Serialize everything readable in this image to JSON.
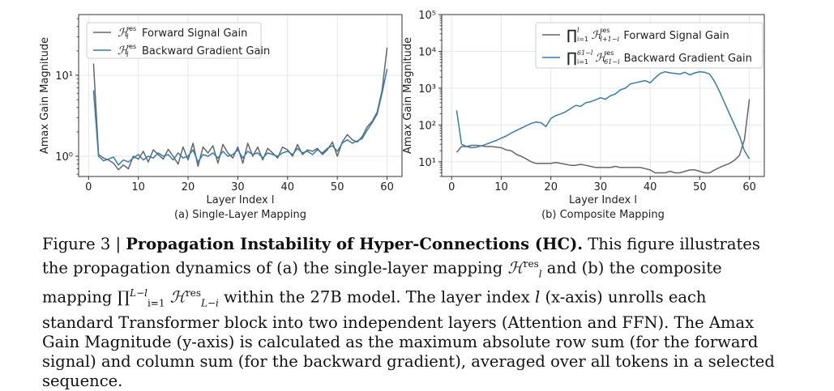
{
  "figure": {
    "caption_label": "Figure 3 | ",
    "caption_title": "Propagation Instability of Hyper-Connections (HC).",
    "caption_p1": " This figure illustrates the propagation dynamics of (a) the single-layer mapping ",
    "caption_m1": "ℋ",
    "caption_m1_sup": "res",
    "caption_m1_sub": "l",
    "caption_p2": " and (b) the composite mapping ",
    "caption_m2": "∏",
    "caption_m2_sup": "L−l",
    "caption_m2_sub": "i=1",
    "caption_m3": " ℋ",
    "caption_m3_sup": "res",
    "caption_m3_sub": "L−i",
    "caption_p3": " within the 27B model. The layer index ",
    "caption_l": "l",
    "caption_p4": " (x-axis) unrolls each standard Transformer block into two independent layers (Attention and FFN). The Amax Gain Magnitude (y-axis) is calculated as the maximum absolute row sum (for the forward signal) and column sum (for the backward gradient), averaged over all tokens in a selected sequence."
  },
  "colors": {
    "forward": "#666666",
    "backward": "#2f7fb5",
    "grid": "#e6e6e6"
  },
  "chart_data": [
    {
      "type": "line",
      "subtitle": "(a) Single-Layer Mapping",
      "xlabel": "Layer Index l",
      "ylabel": "Amax Gain Magnitude",
      "xlim": [
        -2,
        63
      ],
      "ylim_log10": [
        -0.25,
        1.75
      ],
      "x_ticks": [
        0,
        10,
        20,
        30,
        40,
        50,
        60
      ],
      "y_ticks": [
        {
          "value": 1,
          "label": "10⁰"
        },
        {
          "value": 10,
          "label": "10¹"
        }
      ],
      "legend": "top-left",
      "series": [
        {
          "name": "ℋ_l^res Forward Signal Gain",
          "legend_label": "Forward Signal Gain",
          "legend_math": "ℋ",
          "legend_sup": "res",
          "legend_sub": "l",
          "color": "#666666",
          "x": [
            1,
            2,
            3,
            4,
            5,
            6,
            7,
            8,
            9,
            10,
            11,
            12,
            13,
            14,
            15,
            16,
            17,
            18,
            19,
            20,
            21,
            22,
            23,
            24,
            25,
            26,
            27,
            28,
            29,
            30,
            31,
            32,
            33,
            34,
            35,
            36,
            37,
            38,
            39,
            40,
            41,
            42,
            43,
            44,
            45,
            46,
            47,
            48,
            49,
            50,
            51,
            52,
            53,
            54,
            55,
            56,
            57,
            58,
            59,
            60
          ],
          "values": [
            14,
            1.05,
            0.95,
            0.9,
            0.82,
            0.68,
            0.78,
            0.7,
            1.0,
            0.92,
            1.15,
            0.85,
            1.2,
            1.05,
            0.92,
            1.22,
            1.0,
            0.8,
            1.3,
            0.9,
            1.45,
            0.75,
            1.3,
            1.1,
            1.35,
            0.82,
            1.4,
            1.1,
            0.95,
            1.3,
            0.82,
            1.45,
            1.0,
            1.3,
            0.9,
            1.25,
            1.1,
            0.95,
            1.3,
            1.2,
            1.0,
            1.4,
            1.05,
            1.2,
            1.15,
            1.25,
            1.05,
            1.2,
            1.5,
            1.0,
            1.5,
            1.85,
            1.6,
            1.5,
            1.75,
            2.3,
            2.7,
            3.5,
            6.5,
            22
          ]
        },
        {
          "name": "ℋ_l^res Backward Gradient Gain",
          "legend_label": "Backward Gradient Gain",
          "legend_math": "ℋ",
          "legend_sup": "res",
          "legend_sub": "l",
          "color": "#2f7fb5",
          "x": [
            1,
            2,
            3,
            4,
            5,
            6,
            7,
            8,
            9,
            10,
            11,
            12,
            13,
            14,
            15,
            16,
            17,
            18,
            19,
            20,
            21,
            22,
            23,
            24,
            25,
            26,
            27,
            28,
            29,
            30,
            31,
            32,
            33,
            34,
            35,
            36,
            37,
            38,
            39,
            40,
            41,
            42,
            43,
            44,
            45,
            46,
            47,
            48,
            49,
            50,
            51,
            52,
            53,
            54,
            55,
            56,
            57,
            58,
            59,
            60
          ],
          "values": [
            6.5,
            1.0,
            0.88,
            0.92,
            0.98,
            0.78,
            0.9,
            0.85,
            0.95,
            1.05,
            0.9,
            1.0,
            0.95,
            1.1,
            1.0,
            1.05,
            0.9,
            1.1,
            0.95,
            1.0,
            1.2,
            0.85,
            1.05,
            1.0,
            1.1,
            0.95,
            1.15,
            1.0,
            1.05,
            1.2,
            0.95,
            1.15,
            1.05,
            1.1,
            0.95,
            1.1,
            1.05,
            1.0,
            1.1,
            1.15,
            1.05,
            1.25,
            1.1,
            1.15,
            1.05,
            1.2,
            1.1,
            1.25,
            1.35,
            1.15,
            1.45,
            1.6,
            1.45,
            1.55,
            1.65,
            2.1,
            2.6,
            3.3,
            6.0,
            12
          ]
        }
      ]
    },
    {
      "type": "line",
      "subtitle": "(b) Composite Mapping",
      "xlabel": "Layer Index l",
      "ylabel": "Amax Gain Magnitude",
      "xlim": [
        -2,
        63
      ],
      "ylim_log10": [
        0.6,
        5.0
      ],
      "x_ticks": [
        0,
        10,
        20,
        30,
        40,
        50,
        60
      ],
      "y_ticks": [
        {
          "value": 10,
          "label": "10¹"
        },
        {
          "value": 100,
          "label": "10²"
        },
        {
          "value": 1000,
          "label": "10³"
        },
        {
          "value": 10000,
          "label": "10⁴"
        },
        {
          "value": 100000,
          "label": "10⁵"
        }
      ],
      "legend": "top-right",
      "series": [
        {
          "name": "∏_{i=1}^{l} ℋ_{l+1−i}^res Forward Signal Gain",
          "legend_label": "Forward Signal Gain",
          "legend_math": "∏ ℋ",
          "legend_sup": "l  res",
          "legend_sub": "i=1 l+1−i",
          "color": "#666666",
          "x": [
            1,
            2,
            3,
            4,
            5,
            6,
            7,
            8,
            9,
            10,
            11,
            12,
            13,
            14,
            15,
            16,
            17,
            18,
            19,
            20,
            21,
            22,
            23,
            24,
            25,
            26,
            27,
            28,
            29,
            30,
            31,
            32,
            33,
            34,
            35,
            36,
            37,
            38,
            39,
            40,
            41,
            42,
            43,
            44,
            45,
            46,
            47,
            48,
            49,
            50,
            51,
            52,
            53,
            54,
            55,
            56,
            57,
            58,
            59,
            60
          ],
          "values": [
            18,
            26,
            26,
            28,
            28,
            27,
            26,
            26,
            25,
            24,
            21,
            20,
            16,
            14,
            12,
            10,
            9,
            9,
            9,
            9,
            9.5,
            9,
            8.5,
            8,
            8,
            8.5,
            8,
            7.5,
            7,
            7,
            7,
            7,
            7.5,
            7,
            7,
            7,
            7,
            7,
            6.5,
            6,
            5,
            5,
            5,
            5.5,
            5,
            5,
            5.5,
            6,
            6,
            5.5,
            5,
            5,
            6,
            7,
            8,
            9,
            11,
            15,
            40,
            500
          ]
        },
        {
          "name": "∏_{i=1}^{61−l} ℋ_{61−i}^res Backward Gradient Gain",
          "legend_label": "Backward Gradient Gain",
          "legend_math": "∏ ℋ",
          "legend_sup": "61−l  res",
          "legend_sub": "i=1 61−i",
          "color": "#2f7fb5",
          "x": [
            1,
            2,
            3,
            4,
            5,
            6,
            7,
            8,
            9,
            10,
            11,
            12,
            13,
            14,
            15,
            16,
            17,
            18,
            19,
            20,
            21,
            22,
            23,
            24,
            25,
            26,
            27,
            28,
            29,
            30,
            31,
            32,
            33,
            34,
            35,
            36,
            37,
            38,
            39,
            40,
            41,
            42,
            43,
            44,
            45,
            46,
            47,
            48,
            49,
            50,
            51,
            52,
            53,
            54,
            55,
            56,
            57,
            58,
            59,
            60
          ],
          "values": [
            250,
            30,
            26,
            24,
            25,
            27,
            30,
            34,
            38,
            44,
            50,
            60,
            70,
            82,
            95,
            110,
            120,
            115,
            90,
            150,
            180,
            200,
            230,
            280,
            340,
            320,
            400,
            430,
            480,
            550,
            500,
            620,
            700,
            900,
            1000,
            1300,
            1400,
            1500,
            1600,
            1400,
            1900,
            2500,
            2800,
            2600,
            2500,
            2400,
            2700,
            2300,
            2600,
            2800,
            2700,
            2400,
            1500,
            800,
            400,
            200,
            100,
            50,
            20,
            12
          ]
        }
      ]
    }
  ]
}
